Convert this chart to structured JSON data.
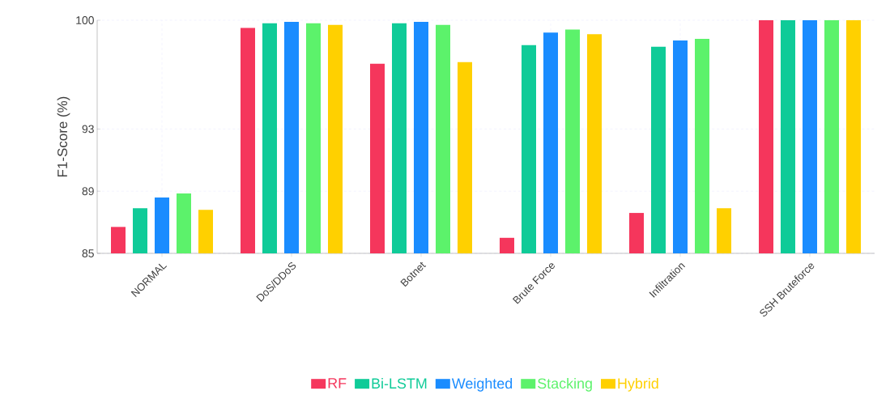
{
  "chart_data": {
    "type": "bar",
    "ylabel": "F1-Score (%)",
    "categories": [
      "NORMAL",
      "DoS/DDoS",
      "Botnet",
      "Brute Force",
      "Infiltration",
      "SSH Bruteforce"
    ],
    "ylim": [
      85,
      100
    ],
    "yticks": [
      85,
      89,
      93,
      100
    ],
    "grid": true,
    "legend": "bottom",
    "series": [
      {
        "name": "RF",
        "color": "#f5365c",
        "values": [
          86.7,
          99.5,
          97.2,
          86.0,
          87.6,
          100
        ]
      },
      {
        "name": "Bi-LSTM",
        "color": "#0fcb98",
        "values": [
          87.9,
          99.8,
          99.8,
          98.4,
          98.3,
          100
        ]
      },
      {
        "name": "Weighted",
        "color": "#1a8cff",
        "values": [
          88.6,
          99.9,
          99.9,
          99.2,
          98.7,
          100
        ]
      },
      {
        "name": "Stacking",
        "color": "#5cf26b",
        "values": [
          88.85,
          99.8,
          99.7,
          99.4,
          98.8,
          100
        ]
      },
      {
        "name": "Hybrid",
        "color": "#ffd000",
        "values": [
          87.8,
          99.7,
          97.3,
          99.1,
          87.9,
          100
        ]
      }
    ]
  }
}
